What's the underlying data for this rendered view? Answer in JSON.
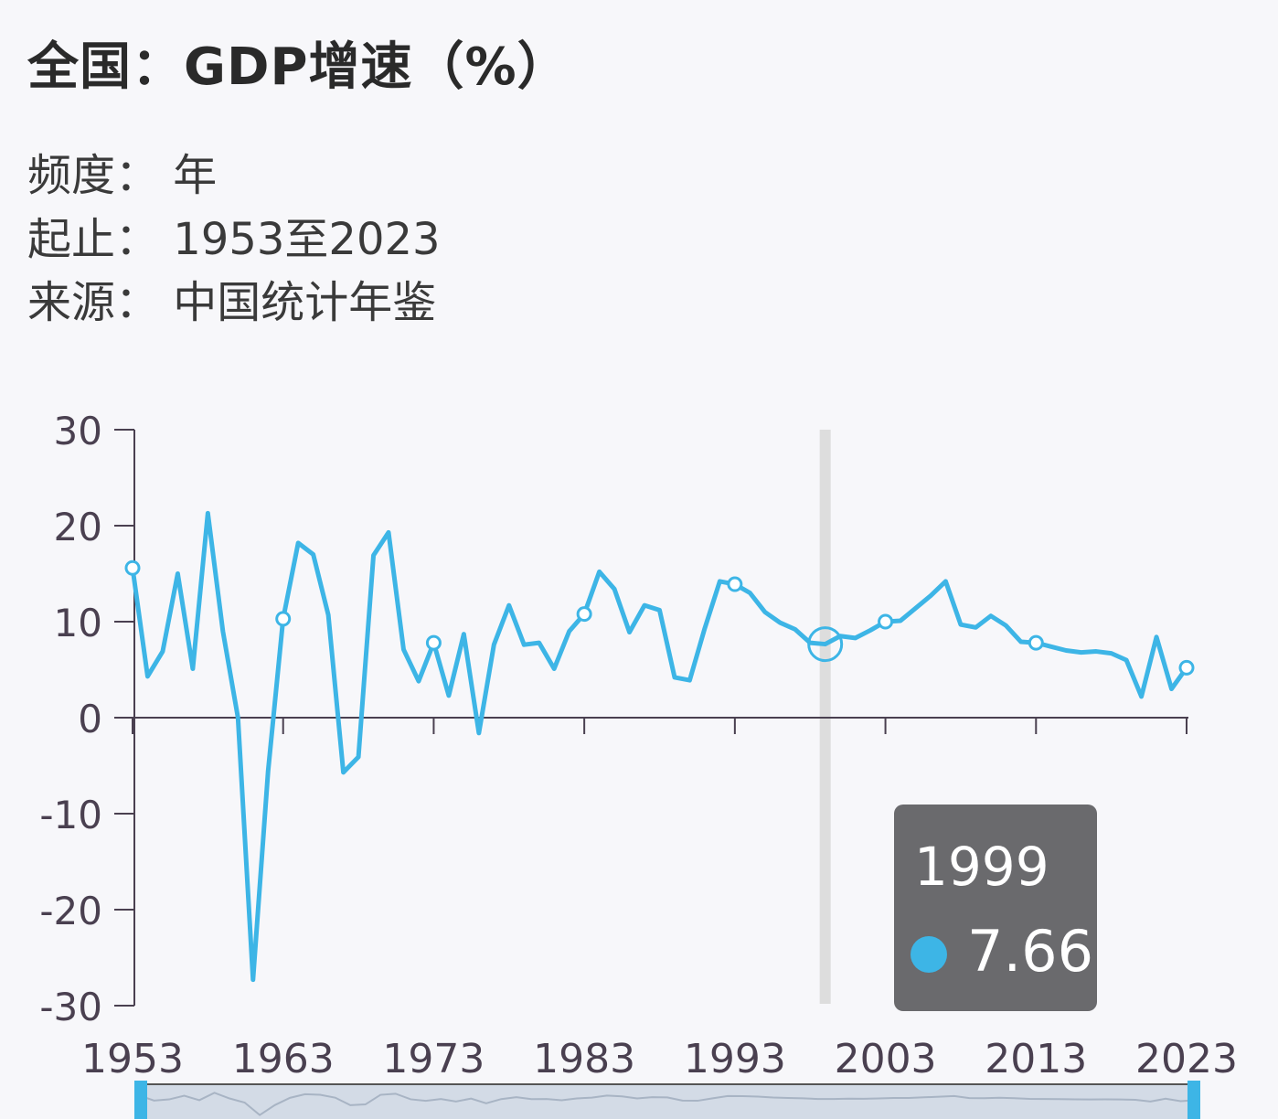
{
  "title": "全国：GDP增速（%）",
  "meta": {
    "frequency": "频度： 年",
    "range": "起止： 1953至2023",
    "source": "来源： 中国统计年鉴"
  },
  "tooltip": {
    "year": "1999",
    "value": "7.66"
  },
  "colors": {
    "line": "#3db5e6",
    "axis": "#4a4050",
    "crosshair": "#dddddd"
  },
  "chart_data": {
    "type": "line",
    "title": "全国：GDP增速（%）",
    "xlabel": "",
    "ylabel": "",
    "ylim": [
      -30,
      30
    ],
    "yticks": [
      30,
      20,
      10,
      0,
      -10,
      -20,
      -30
    ],
    "xticks": [
      1953,
      1963,
      1973,
      1983,
      1993,
      2003,
      2013,
      2023
    ],
    "x": [
      1953,
      1954,
      1955,
      1956,
      1957,
      1958,
      1959,
      1960,
      1961,
      1962,
      1963,
      1964,
      1965,
      1966,
      1967,
      1968,
      1969,
      1970,
      1971,
      1972,
      1973,
      1974,
      1975,
      1976,
      1977,
      1978,
      1979,
      1980,
      1981,
      1982,
      1983,
      1984,
      1985,
      1986,
      1987,
      1988,
      1989,
      1990,
      1991,
      1992,
      1993,
      1994,
      1995,
      1996,
      1997,
      1998,
      1999,
      2000,
      2001,
      2002,
      2003,
      2004,
      2005,
      2006,
      2007,
      2008,
      2009,
      2010,
      2011,
      2012,
      2013,
      2014,
      2015,
      2016,
      2017,
      2018,
      2019,
      2020,
      2021,
      2022,
      2023
    ],
    "series": [
      {
        "name": "GDP增速",
        "values": [
          15.6,
          4.3,
          6.9,
          15.0,
          5.1,
          21.3,
          9.0,
          0.0,
          -27.3,
          -5.6,
          10.3,
          18.2,
          17.0,
          10.7,
          -5.7,
          -4.1,
          16.9,
          19.3,
          7.1,
          3.8,
          7.8,
          2.3,
          8.7,
          -1.6,
          7.6,
          11.7,
          7.6,
          7.8,
          5.1,
          9.0,
          10.8,
          15.2,
          13.4,
          8.9,
          11.7,
          11.2,
          4.2,
          3.9,
          9.3,
          14.2,
          13.9,
          13.0,
          11.0,
          9.9,
          9.2,
          7.8,
          7.66,
          8.5,
          8.3,
          9.1,
          10.0,
          10.1,
          11.4,
          12.7,
          14.2,
          9.7,
          9.4,
          10.6,
          9.6,
          7.9,
          7.8,
          7.4,
          7.0,
          6.8,
          6.9,
          6.7,
          6.0,
          2.2,
          8.4,
          3.0,
          5.2
        ]
      }
    ],
    "highlight_year": 1999,
    "legend": "none"
  }
}
